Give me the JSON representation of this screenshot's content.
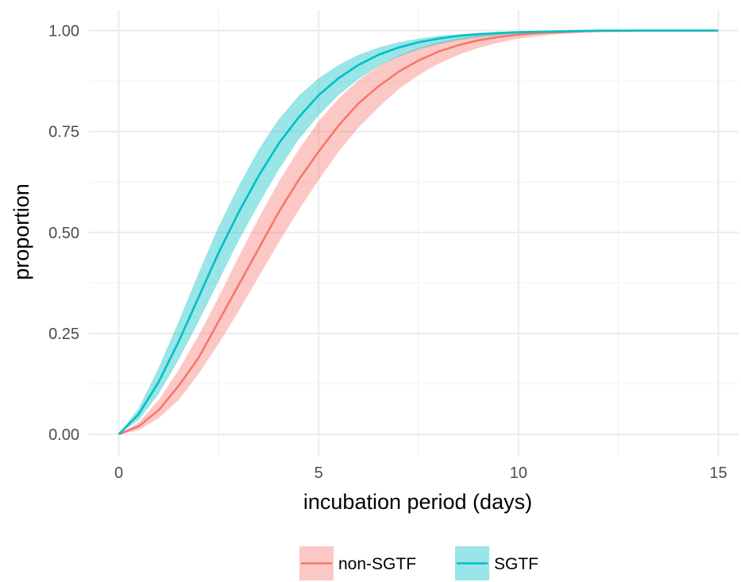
{
  "chart_data": {
    "type": "line",
    "title": "",
    "xlabel": "incubation period (days)",
    "ylabel": "proportion",
    "xlim": [
      0,
      15
    ],
    "ylim": [
      0,
      1
    ],
    "x_ticks": [
      0,
      5,
      10,
      15
    ],
    "x_tick_labels": [
      "0",
      "5",
      "10",
      "15"
    ],
    "y_ticks": [
      0,
      0.25,
      0.5,
      0.75,
      1
    ],
    "y_tick_labels": [
      "0.00",
      "0.25",
      "0.50",
      "0.75",
      "1.00"
    ],
    "grid": true,
    "legend_position": "bottom",
    "x": [
      0,
      0.5,
      1,
      1.5,
      2,
      2.5,
      3,
      3.5,
      4,
      4.5,
      5,
      5.5,
      6,
      6.5,
      7,
      7.5,
      8,
      8.5,
      9,
      9.5,
      10,
      10.5,
      11,
      11.5,
      12,
      12.5,
      13,
      13.5,
      14,
      14.5,
      15
    ],
    "series": [
      {
        "name": "non-SGTF",
        "color": "#F8766D",
        "fill": "#F8766D",
        "values": [
          0,
          0.02,
          0.06,
          0.12,
          0.19,
          0.28,
          0.37,
          0.46,
          0.55,
          0.63,
          0.7,
          0.765,
          0.82,
          0.862,
          0.898,
          0.926,
          0.948,
          0.964,
          0.976,
          0.984,
          0.99,
          0.994,
          0.996,
          0.998,
          0.999,
          0.999,
          1,
          1,
          1,
          1,
          1
        ],
        "lower": [
          0,
          0.01,
          0.04,
          0.085,
          0.15,
          0.225,
          0.305,
          0.39,
          0.475,
          0.555,
          0.63,
          0.7,
          0.76,
          0.81,
          0.855,
          0.89,
          0.918,
          0.94,
          0.957,
          0.97,
          0.98,
          0.986,
          0.991,
          0.994,
          0.996,
          0.998,
          0.999,
          0.999,
          1,
          1,
          1
        ],
        "upper": [
          0,
          0.03,
          0.085,
          0.16,
          0.245,
          0.34,
          0.44,
          0.535,
          0.625,
          0.705,
          0.775,
          0.832,
          0.877,
          0.912,
          0.938,
          0.957,
          0.971,
          0.981,
          0.988,
          0.992,
          0.995,
          0.997,
          0.998,
          0.999,
          1,
          1,
          1,
          1,
          1,
          1,
          1
        ]
      },
      {
        "name": "SGTF",
        "color": "#00BFC4",
        "fill": "#00BFC4",
        "values": [
          0,
          0.05,
          0.13,
          0.23,
          0.34,
          0.45,
          0.55,
          0.64,
          0.72,
          0.785,
          0.84,
          0.882,
          0.915,
          0.94,
          0.958,
          0.971,
          0.98,
          0.987,
          0.991,
          0.994,
          0.996,
          0.997,
          0.998,
          0.999,
          1,
          1,
          1,
          1,
          1,
          1,
          1
        ],
        "lower": [
          0,
          0.035,
          0.1,
          0.185,
          0.28,
          0.38,
          0.48,
          0.57,
          0.655,
          0.73,
          0.79,
          0.84,
          0.88,
          0.912,
          0.935,
          0.953,
          0.966,
          0.976,
          0.983,
          0.988,
          0.992,
          0.995,
          0.996,
          0.998,
          0.999,
          0.999,
          1,
          1,
          1,
          1,
          1
        ],
        "upper": [
          0,
          0.065,
          0.165,
          0.28,
          0.4,
          0.515,
          0.615,
          0.705,
          0.78,
          0.838,
          0.882,
          0.915,
          0.94,
          0.958,
          0.971,
          0.98,
          0.987,
          0.991,
          0.994,
          0.996,
          0.998,
          0.999,
          1,
          1,
          1,
          1,
          1,
          1,
          1,
          1,
          1
        ]
      }
    ]
  }
}
